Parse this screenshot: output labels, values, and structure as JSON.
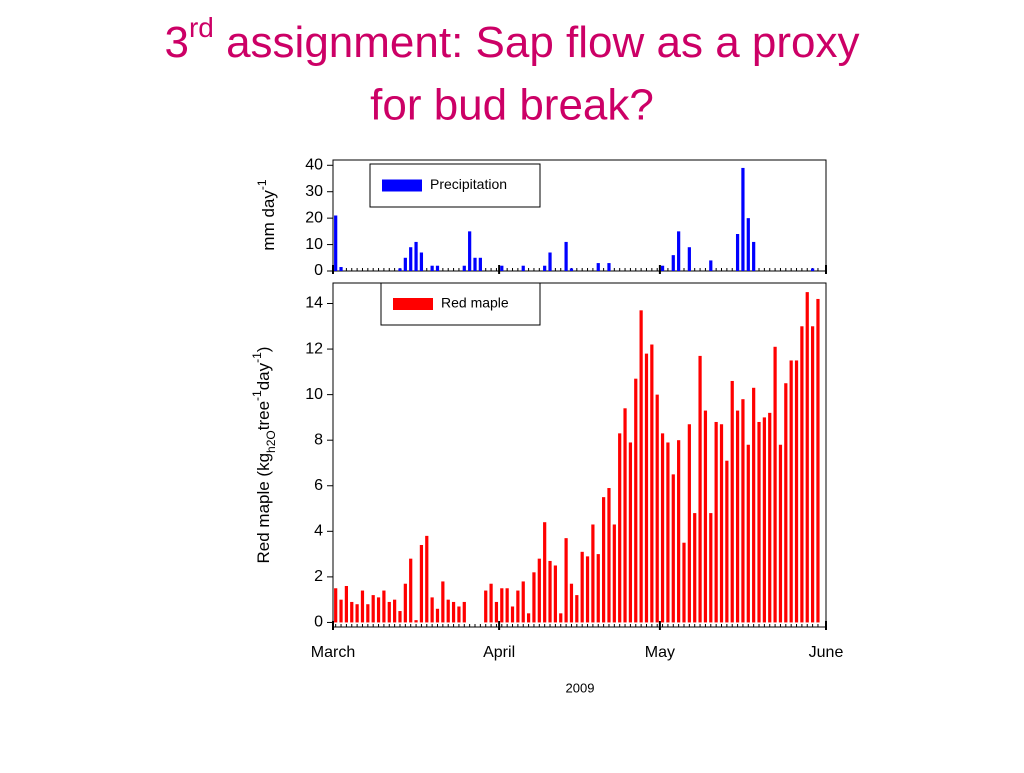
{
  "title": {
    "main": "3",
    "sup": "rd",
    "rest": " assignment: Sap flow as a proxy",
    "line2": "for bud break?"
  },
  "chart_data": [
    {
      "type": "bar",
      "ylabel": [
        "mm day",
        "-1"
      ],
      "ylabel_styles": [
        "normal",
        "sup"
      ],
      "x": [
        0,
        1,
        2,
        3,
        4,
        5,
        6,
        7,
        8,
        9,
        10,
        11,
        12,
        13,
        14,
        15,
        16,
        17,
        18,
        19,
        20,
        21,
        22,
        23,
        24,
        25,
        26,
        27,
        28,
        29,
        30,
        31,
        32,
        33,
        34,
        35,
        36,
        37,
        38,
        39,
        40,
        41,
        42,
        43,
        44,
        45,
        46,
        47,
        48,
        49,
        50,
        51,
        52,
        53,
        54,
        55,
        56,
        57,
        58,
        59,
        60,
        61,
        62,
        63,
        64,
        65,
        66,
        67,
        68,
        69,
        70,
        71,
        72,
        73,
        74,
        75,
        76,
        77,
        78,
        79,
        80,
        81,
        82,
        83,
        84,
        85,
        86,
        87,
        88,
        89,
        90
      ],
      "series": [
        {
          "name": "Precipitation",
          "color": "#0000ff",
          "values": [
            21,
            1.5,
            0,
            0,
            0,
            0,
            0,
            0,
            0,
            0,
            0,
            0,
            1,
            5,
            9,
            11,
            7,
            0,
            2,
            2,
            0,
            0,
            0,
            0,
            2,
            15,
            5,
            5,
            0,
            0,
            0,
            2,
            0,
            0,
            0,
            2,
            0,
            0,
            0,
            2,
            7,
            0,
            0,
            11,
            1,
            0,
            0,
            0,
            0,
            3,
            0,
            3,
            0,
            0,
            0,
            0,
            0,
            0,
            0,
            0,
            0,
            2,
            0,
            6,
            15,
            0,
            9,
            0,
            0,
            0,
            4,
            0,
            0,
            0,
            0,
            14,
            39,
            20,
            11,
            0,
            0,
            0,
            0,
            0,
            0,
            0,
            0,
            0,
            0,
            1,
            0
          ]
        }
      ],
      "xlim": [
        0,
        92
      ],
      "xticks": [
        {
          "value": 0,
          "label": "March"
        },
        {
          "value": 31,
          "label": "April"
        },
        {
          "value": 61,
          "label": "May"
        },
        {
          "value": 92,
          "label": "June"
        }
      ],
      "ylim": [
        0,
        42
      ],
      "yticks": [
        0,
        10,
        20,
        30,
        40
      ]
    },
    {
      "type": "bar",
      "ylabel": [
        "Red maple (kg",
        "h2O",
        "tree",
        "-1",
        "day",
        "-1",
        ")"
      ],
      "ylabel_styles": [
        "normal",
        "sub",
        "normal",
        "sup",
        "normal",
        "sup",
        "normal"
      ],
      "xlabel": "2009",
      "x": [
        0,
        1,
        2,
        3,
        4,
        5,
        6,
        7,
        8,
        9,
        10,
        11,
        12,
        13,
        14,
        15,
        16,
        17,
        18,
        19,
        20,
        21,
        22,
        23,
        24,
        25,
        26,
        27,
        28,
        29,
        30,
        31,
        32,
        33,
        34,
        35,
        36,
        37,
        38,
        39,
        40,
        41,
        42,
        43,
        44,
        45,
        46,
        47,
        48,
        49,
        50,
        51,
        52,
        53,
        54,
        55,
        56,
        57,
        58,
        59,
        60,
        61,
        62,
        63,
        64,
        65,
        66,
        67,
        68,
        69,
        70,
        71,
        72,
        73,
        74,
        75,
        76,
        77,
        78,
        79,
        80,
        81,
        82,
        83,
        84,
        85,
        86,
        87,
        88,
        89,
        90
      ],
      "series": [
        {
          "name": "Red maple",
          "color": "#ff0000",
          "values": [
            1.5,
            1.0,
            1.6,
            0.9,
            0.8,
            1.4,
            0.8,
            1.2,
            1.1,
            1.4,
            0.9,
            1.0,
            0.5,
            1.7,
            2.8,
            0.1,
            3.4,
            3.8,
            1.1,
            0.6,
            1.8,
            1.0,
            0.9,
            0.7,
            0.9,
            0,
            0,
            0,
            1.4,
            1.7,
            0.9,
            1.5,
            1.5,
            0.7,
            1.4,
            1.8,
            0.4,
            2.2,
            2.8,
            4.4,
            2.7,
            2.5,
            0.4,
            3.7,
            1.7,
            1.2,
            3.1,
            2.9,
            4.3,
            3.0,
            5.5,
            5.9,
            4.3,
            8.3,
            9.4,
            7.9,
            10.7,
            13.7,
            11.8,
            12.2,
            10.0,
            8.3,
            7.9,
            6.5,
            8.0,
            3.5,
            8.7,
            4.8,
            11.7,
            9.3,
            4.8,
            8.8,
            8.7,
            7.1,
            10.6,
            9.3,
            9.8,
            7.8,
            10.3,
            8.8,
            9.0,
            9.2,
            12.1,
            7.8,
            10.5,
            11.5,
            11.5,
            13.0,
            14.5,
            13.0,
            14.2
          ]
        }
      ],
      "xlim": [
        0,
        92
      ],
      "xticks": [
        {
          "value": 0,
          "label": "March"
        },
        {
          "value": 31,
          "label": "April"
        },
        {
          "value": 61,
          "label": "May"
        },
        {
          "value": 92,
          "label": "June"
        }
      ],
      "ylim": [
        -0.2,
        14.9
      ],
      "yticks": [
        0,
        2,
        4,
        6,
        8,
        10,
        12,
        14
      ]
    }
  ]
}
